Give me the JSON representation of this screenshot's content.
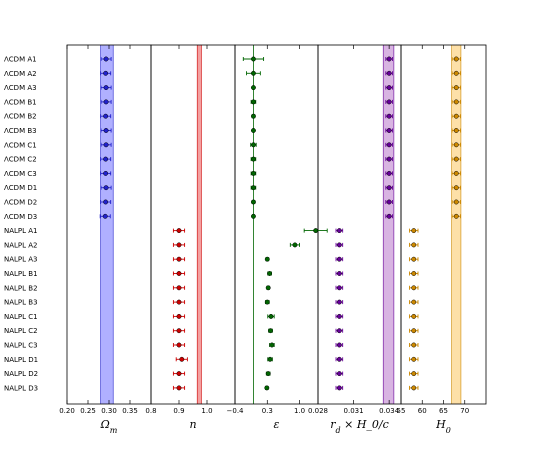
{
  "rows": [
    "ΛCDM A1",
    "ΛCDM A2",
    "ΛCDM A3",
    "ΛCDM B1",
    "ΛCDM B2",
    "ΛCDM B3",
    "ΛCDM C1",
    "ΛCDM C2",
    "ΛCDM C3",
    "ΛCDM D1",
    "ΛCDM D2",
    "ΛCDM D3",
    "NALPL  A1",
    "NALPL  A2",
    "NALPL  A3",
    "NALPL  B1",
    "NALPL  B2",
    "NALPL  B3",
    "NALPL  C1",
    "NALPL  C2",
    "NALPL  C3",
    "NALPL  D1",
    "NALPL  D2",
    "NALPL  D3"
  ],
  "chart_data": [
    {
      "type": "scatter",
      "xlabel": "Ω_m",
      "xlim": [
        0.2,
        0.4
      ],
      "ticks": [
        0.2,
        0.25,
        0.3,
        0.35
      ],
      "tick_labels": [
        "0.20",
        "0.25",
        "0.30",
        "0.35"
      ],
      "color": "#2222cc",
      "band": [
        0.28,
        0.31
      ],
      "band_color": "#b0b0ff",
      "values": [
        0.293,
        0.292,
        0.293,
        0.293,
        0.292,
        0.293,
        0.293,
        0.292,
        0.292,
        0.293,
        0.292,
        0.291,
        null,
        null,
        null,
        null,
        null,
        null,
        null,
        null,
        null,
        null,
        null,
        null
      ],
      "errors": [
        0.012,
        0.012,
        0.012,
        0.012,
        0.012,
        0.012,
        0.012,
        0.012,
        0.012,
        0.012,
        0.012,
        0.012,
        null,
        null,
        null,
        null,
        null,
        null,
        null,
        null,
        null,
        null,
        null,
        null
      ]
    },
    {
      "type": "scatter",
      "xlabel": "n",
      "xlim": [
        0.8,
        1.1
      ],
      "ticks": [
        0.8,
        0.9,
        1.0
      ],
      "tick_labels": [
        "0.8",
        "0.9",
        "1.0"
      ],
      "color": "#cc0000",
      "band": [
        0.965,
        0.98
      ],
      "band_color": "#f4a0a0",
      "values": [
        null,
        null,
        null,
        null,
        null,
        null,
        null,
        null,
        null,
        null,
        null,
        null,
        0.9,
        0.9,
        0.9,
        0.9,
        0.9,
        0.9,
        0.9,
        0.9,
        0.9,
        0.91,
        0.9,
        0.9
      ],
      "errors": [
        null,
        null,
        null,
        null,
        null,
        null,
        null,
        null,
        null,
        null,
        null,
        null,
        0.02,
        0.02,
        0.02,
        0.02,
        0.02,
        0.02,
        0.02,
        0.02,
        0.02,
        0.02,
        0.02,
        0.02
      ]
    },
    {
      "type": "scatter",
      "xlabel": "ε",
      "xlim": [
        -0.4,
        1.4
      ],
      "ticks": [
        -0.4,
        0.3,
        1.0
      ],
      "tick_labels": [
        "−0.4",
        "0.3",
        "1.0"
      ],
      "color": "#006600",
      "vline": 0,
      "values": [
        0,
        0,
        0,
        0,
        0,
        0,
        0,
        0,
        0,
        0,
        0,
        0,
        1.35,
        0.9,
        0.3,
        0.35,
        0.32,
        0.3,
        0.38,
        0.37,
        0.4,
        0.36,
        0.32,
        0.29
      ],
      "errors": [
        0.22,
        0.15,
        0.02,
        0.05,
        0.03,
        0.02,
        0.06,
        0.05,
        0.05,
        0.05,
        0.03,
        0.02,
        0.25,
        0.1,
        0.03,
        0.04,
        0.03,
        0.04,
        0.07,
        0.04,
        0.05,
        0.05,
        0.04,
        0.03
      ]
    },
    {
      "type": "scatter",
      "xlabel": "r_d × H_0/c",
      "xlim": [
        0.028,
        0.035
      ],
      "ticks": [
        0.028,
        0.031,
        0.034
      ],
      "tick_labels": [
        "0.028",
        "0.031",
        "0.034"
      ],
      "color": "#660099",
      "band": [
        0.0335,
        0.0344
      ],
      "band_color": "#d8b4e2",
      "values": [
        0.034,
        0.034,
        0.034,
        0.034,
        0.034,
        0.034,
        0.034,
        0.034,
        0.034,
        0.034,
        0.034,
        0.034,
        0.0298,
        0.0298,
        0.0298,
        0.0298,
        0.0298,
        0.0298,
        0.0298,
        0.0298,
        0.0298,
        0.0298,
        0.0298,
        0.0298
      ],
      "errors": [
        0.00028,
        0.00028,
        0.00028,
        0.00028,
        0.00028,
        0.00028,
        0.00028,
        0.00028,
        0.00028,
        0.00028,
        0.00028,
        0.00028,
        0.00028,
        0.00028,
        0.00028,
        0.00028,
        0.00028,
        0.00028,
        0.00028,
        0.00028,
        0.00028,
        0.00028,
        0.00028,
        0.00028
      ]
    },
    {
      "type": "scatter",
      "xlabel": "H_0",
      "xlim": [
        55,
        75
      ],
      "ticks": [
        55,
        60,
        65,
        70
      ],
      "tick_labels": [
        "55",
        "60",
        "65",
        "70"
      ],
      "color": "#cc8800",
      "band": [
        66.9,
        69.1
      ],
      "band_color": "#fde0a8",
      "values": [
        68,
        68,
        68,
        68,
        68,
        68,
        68,
        68,
        68,
        68,
        68,
        68,
        58,
        58,
        58,
        58,
        58,
        58,
        58,
        58,
        58,
        58,
        58,
        58
      ],
      "errors": [
        1,
        1,
        1,
        1,
        1,
        1,
        1,
        1,
        1,
        1,
        1,
        1,
        1,
        1,
        1,
        1,
        1,
        1,
        1,
        1,
        1,
        1,
        1,
        1
      ]
    }
  ]
}
